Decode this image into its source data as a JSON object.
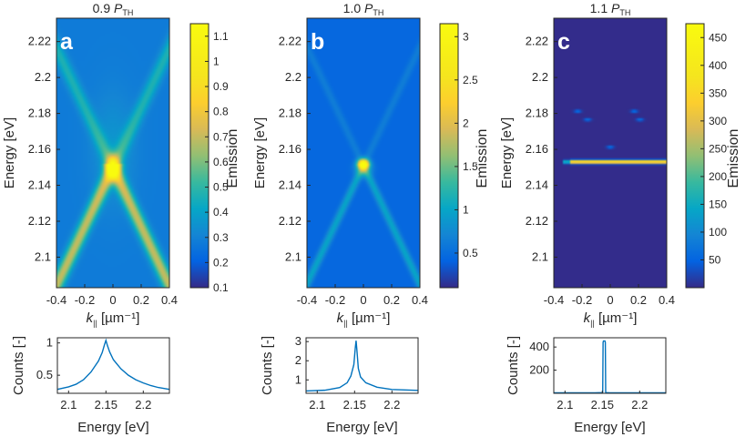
{
  "figure": {
    "power_unit_main": "P",
    "power_unit_sub": "TH",
    "xaxis_k_label_main": "k",
    "xaxis_k_label_sub": "||",
    "xaxis_k_label_unit": "[µm⁻¹]",
    "colors": {
      "map_low": "#352a87",
      "map_high": "#f9fb0e",
      "line": "#0072bd",
      "axis": "#262626"
    }
  },
  "chart_data": [
    {
      "id": "a",
      "type": "heatmap",
      "panel_label": "a",
      "title_value": "0.9",
      "xlabel": "k|| [µm⁻¹]",
      "ylabel": "Energy [eV]",
      "xlim": [
        -0.4,
        0.4
      ],
      "ylim": [
        2.083,
        2.233
      ],
      "xticks": [
        "-0.4",
        "-0.2",
        "0",
        "0.2",
        "0.4"
      ],
      "xtick_values": [
        -0.4,
        -0.2,
        0,
        0.2,
        0.4
      ],
      "yticks": [
        "2.22",
        "2.2",
        "2.18",
        "2.16",
        "2.14",
        "2.12",
        "2.1"
      ],
      "ytick_values": [
        2.22,
        2.2,
        2.18,
        2.16,
        2.14,
        2.12,
        2.1
      ],
      "colorbar_label": "Emission",
      "clim": [
        0.1,
        1.15
      ],
      "colorbar_ticks": [
        "1.1",
        "1",
        "0.9",
        "0.8",
        "0.7",
        "0.6",
        "0.5",
        "0.4",
        "0.3",
        "0.2",
        "0.1"
      ],
      "colorbar_tick_values": [
        1.1,
        1.0,
        0.9,
        0.8,
        0.7,
        0.6,
        0.5,
        0.4,
        0.3,
        0.2,
        0.1
      ],
      "description": "Broad X-shaped dispersion crossing at k=0, E≈2.150 eV; lower branches brighter; peak at apex ≈1.1",
      "peak_energy": 2.15,
      "peak_value": 1.1,
      "background": 0.28
    },
    {
      "id": "b",
      "type": "heatmap",
      "panel_label": "b",
      "title_value": "1.0",
      "xlabel": "k|| [µm⁻¹]",
      "ylabel": "Energy [eV]",
      "xlim": [
        -0.4,
        0.4
      ],
      "ylim": [
        2.083,
        2.233
      ],
      "xticks": [
        "-0.4",
        "-0.2",
        "0",
        "0.2",
        "0.4"
      ],
      "xtick_values": [
        -0.4,
        -0.2,
        0,
        0.2,
        0.4
      ],
      "yticks": [
        "2.22",
        "2.2",
        "2.18",
        "2.16",
        "2.14",
        "2.12",
        "2.1"
      ],
      "ytick_values": [
        2.22,
        2.2,
        2.18,
        2.16,
        2.14,
        2.12,
        2.1
      ],
      "colorbar_label": "Emission",
      "clim": [
        0.1,
        3.15
      ],
      "colorbar_ticks": [
        "3",
        "2.5",
        "2",
        "1.5",
        "1",
        "0.5"
      ],
      "colorbar_tick_values": [
        3,
        2.5,
        2,
        1.5,
        1,
        0.5
      ],
      "description": "Sharper X-shaped dispersion, bright spot at k=0, E≈2.152 eV (≈3)",
      "peak_energy": 2.152,
      "peak_value": 3.0,
      "background": 0.45
    },
    {
      "id": "c",
      "type": "heatmap",
      "panel_label": "c",
      "title_value": "1.1",
      "xlabel": "k|| [µm⁻¹]",
      "ylabel": "Energy [eV]",
      "xlim": [
        -0.4,
        0.4
      ],
      "ylim": [
        2.083,
        2.233
      ],
      "xticks": [
        "-0.4",
        "-0.2",
        "0",
        "0.2",
        "0.4"
      ],
      "xtick_values": [
        -0.4,
        -0.2,
        0,
        0.2,
        0.4
      ],
      "yticks": [
        "2.22",
        "2.2",
        "2.18",
        "2.16",
        "2.14",
        "2.12",
        "2.1"
      ],
      "ytick_values": [
        2.22,
        2.2,
        2.18,
        2.16,
        2.14,
        2.12,
        2.1
      ],
      "colorbar_label": "Emission",
      "clim": [
        0,
        475
      ],
      "colorbar_ticks": [
        "450",
        "400",
        "350",
        "300",
        "250",
        "200",
        "150",
        "100",
        "50"
      ],
      "colorbar_tick_values": [
        450,
        400,
        350,
        300,
        250,
        200,
        150,
        100,
        50
      ],
      "description": "Lasing: single flat emission line at E≈2.153 eV spanning k from -0.33 to 0.4 (≈450); weak spots at ±0.2, 2.181 and 2.177 eV and near 0, 2.161 eV",
      "peak_energy": 2.153,
      "peak_value": 450,
      "spots": [
        {
          "k": -0.23,
          "energy": 2.1812
        },
        {
          "k": -0.16,
          "energy": 2.1765
        },
        {
          "k": 0.17,
          "energy": 2.1812
        },
        {
          "k": 0.21,
          "energy": 2.1765
        },
        {
          "k": 0.0,
          "energy": 2.1612
        }
      ]
    },
    {
      "id": "a-spectrum",
      "type": "line",
      "xlabel": "Energy [eV]",
      "ylabel": "Counts [-]",
      "xlim": [
        2.085,
        2.235
      ],
      "ylim": [
        0.22,
        1.08
      ],
      "xticks": [
        "2.1",
        "2.15",
        "2.2"
      ],
      "xtick_values": [
        2.1,
        2.15,
        2.2
      ],
      "yticks": [
        "1",
        "0.5"
      ],
      "ytick_values": [
        1,
        0.5
      ],
      "x": [
        2.085,
        2.1,
        2.11,
        2.12,
        2.13,
        2.14,
        2.145,
        2.148,
        2.15,
        2.152,
        2.155,
        2.16,
        2.17,
        2.18,
        2.19,
        2.2,
        2.21,
        2.22,
        2.235
      ],
      "y": [
        0.28,
        0.32,
        0.36,
        0.43,
        0.55,
        0.72,
        0.85,
        0.97,
        1.04,
        0.96,
        0.86,
        0.74,
        0.6,
        0.5,
        0.43,
        0.38,
        0.34,
        0.31,
        0.28
      ]
    },
    {
      "id": "b-spectrum",
      "type": "line",
      "xlabel": "Energy [eV]",
      "ylabel": "Counts [-]",
      "xlim": [
        2.085,
        2.235
      ],
      "ylim": [
        0.3,
        3.2
      ],
      "xticks": [
        "2.1",
        "2.15",
        "2.2"
      ],
      "xtick_values": [
        2.1,
        2.15,
        2.2
      ],
      "yticks": [
        "3",
        "2",
        "1"
      ],
      "ytick_values": [
        3,
        2,
        1
      ],
      "x": [
        2.085,
        2.11,
        2.13,
        2.14,
        2.145,
        2.149,
        2.151,
        2.152,
        2.153,
        2.155,
        2.158,
        2.165,
        2.18,
        2.2,
        2.235
      ],
      "y": [
        0.42,
        0.46,
        0.6,
        0.85,
        1.2,
        1.8,
        2.7,
        3.05,
        2.6,
        1.6,
        1.15,
        0.85,
        0.62,
        0.5,
        0.45
      ]
    },
    {
      "id": "c-spectrum",
      "type": "line",
      "xlabel": "Energy [eV]",
      "ylabel": "Counts [-]",
      "xlim": [
        2.085,
        2.235
      ],
      "ylim": [
        0,
        480
      ],
      "xticks": [
        "2.1",
        "2.15",
        "2.2"
      ],
      "xtick_values": [
        2.1,
        2.15,
        2.2
      ],
      "yticks": [
        "400",
        "200"
      ],
      "ytick_values": [
        400,
        200
      ],
      "x": [
        2.085,
        2.14,
        2.1505,
        2.151,
        2.1515,
        2.1535,
        2.154,
        2.1545,
        2.16,
        2.235
      ],
      "y": [
        4,
        4,
        6,
        440,
        452,
        452,
        440,
        6,
        4,
        4
      ]
    }
  ]
}
